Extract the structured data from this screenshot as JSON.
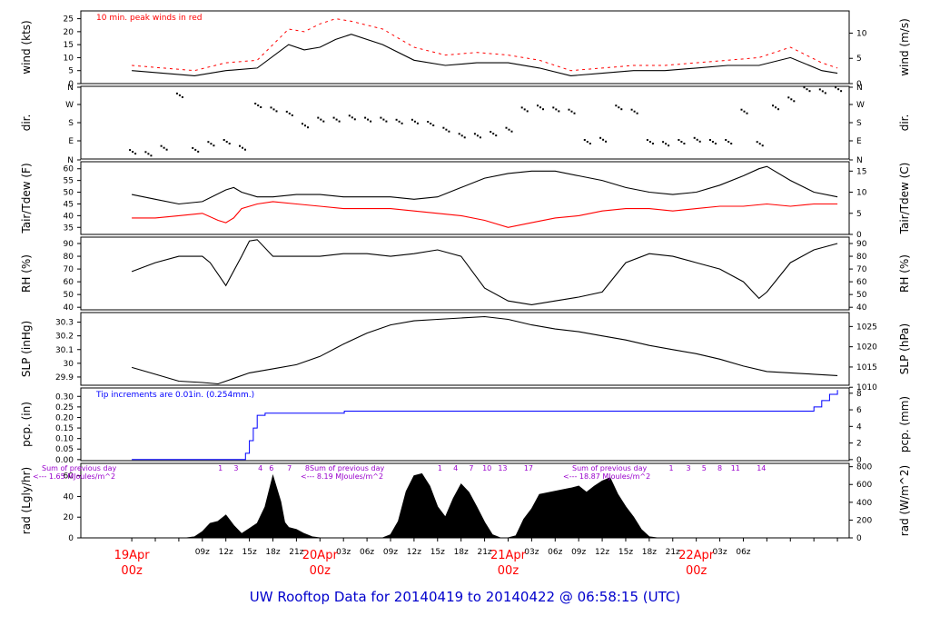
{
  "footer": {
    "title": "UW Rooftop Data for 20140419  to  20140422 @ 06:58:15  (UTC)"
  },
  "colors": {
    "frame": "#000000",
    "red": "#ff0000",
    "blue": "#0000ff",
    "purple": "#9900cc",
    "date_red": "#ff0000",
    "footer": "#0000cc"
  },
  "chart_data": [
    {
      "type": "line",
      "id": "wind",
      "ylabel_left": "wind (kts)",
      "ylabel_right": "wind (m/s)",
      "annotation": "10 min. peak winds in red",
      "yticks_left": [
        0,
        5,
        10,
        15,
        20,
        25
      ],
      "yticks_right": [
        0,
        5,
        10
      ],
      "ylim": [
        0,
        28
      ],
      "series": [
        {
          "color": "#000000",
          "x_hours": [
            0,
            4,
            8,
            12,
            16,
            20,
            22,
            24,
            26,
            28,
            32,
            36,
            40,
            44,
            48,
            52,
            56,
            60,
            64,
            68,
            72,
            76,
            80,
            84,
            88,
            90
          ],
          "values": [
            5,
            4,
            3,
            5,
            6,
            15,
            13,
            14,
            17,
            19,
            15,
            9,
            7,
            8,
            8,
            6,
            3,
            4,
            5,
            5,
            6,
            7,
            7,
            10,
            5,
            4
          ]
        },
        {
          "color": "#ff0000",
          "x_hours": [
            0,
            4,
            8,
            12,
            16,
            20,
            22,
            24,
            26,
            28,
            32,
            36,
            40,
            44,
            48,
            52,
            56,
            60,
            64,
            68,
            72,
            76,
            80,
            84,
            88,
            90
          ],
          "values": [
            7,
            6,
            5,
            8,
            9,
            21,
            20,
            23,
            25,
            24,
            21,
            14,
            11,
            12,
            11,
            9,
            5,
            6,
            7,
            7,
            8,
            9,
            10,
            14,
            8,
            6
          ]
        }
      ]
    },
    {
      "type": "scatter",
      "id": "dir",
      "ylabel_left": "dir.",
      "ylabel_right": "dir.",
      "yticks_labels": [
        "N",
        "E",
        "S",
        "W",
        "N"
      ],
      "x_hours": [
        0,
        2,
        4,
        6,
        8,
        10,
        12,
        14,
        16,
        18,
        20,
        22,
        24,
        26,
        28,
        30,
        32,
        34,
        36,
        38,
        40,
        42,
        44,
        46,
        48,
        50,
        52,
        54,
        56,
        58,
        60,
        62,
        64,
        66,
        68,
        70,
        72,
        74,
        76,
        78,
        80,
        82,
        84,
        86,
        88,
        90
      ],
      "values": [
        40,
        30,
        60,
        320,
        50,
        80,
        90,
        60,
        270,
        250,
        230,
        170,
        200,
        200,
        210,
        200,
        200,
        190,
        190,
        180,
        150,
        120,
        120,
        130,
        150,
        250,
        260,
        250,
        240,
        90,
        100,
        260,
        240,
        90,
        80,
        90,
        100,
        90,
        90,
        240,
        80,
        260,
        300,
        350,
        340,
        350
      ]
    },
    {
      "type": "line",
      "id": "temp",
      "ylabel_left": "Tair/Tdew (F)",
      "ylabel_right": "Tair/Tdew (C)",
      "yticks_left": [
        35,
        40,
        45,
        50,
        55,
        60
      ],
      "yticks_right": [
        0,
        5,
        10,
        15
      ],
      "ylim": [
        32,
        63
      ],
      "series": [
        {
          "color": "#000000",
          "x_hours": [
            0,
            3,
            6,
            9,
            12,
            13,
            14,
            16,
            18,
            21,
            24,
            27,
            30,
            33,
            36,
            39,
            42,
            45,
            48,
            51,
            54,
            57,
            60,
            63,
            66,
            69,
            72,
            75,
            78,
            80,
            81,
            84,
            87,
            90
          ],
          "values": [
            49,
            47,
            45,
            46,
            51,
            52,
            50,
            48,
            48,
            49,
            49,
            48,
            48,
            48,
            47,
            48,
            52,
            56,
            58,
            59,
            59,
            57,
            55,
            52,
            50,
            49,
            50,
            53,
            57,
            60,
            61,
            55,
            50,
            48
          ]
        },
        {
          "color": "#ff0000",
          "x_hours": [
            0,
            3,
            6,
            9,
            11,
            12,
            13,
            14,
            16,
            18,
            21,
            24,
            27,
            30,
            33,
            36,
            39,
            42,
            45,
            48,
            51,
            54,
            57,
            60,
            63,
            66,
            69,
            72,
            75,
            78,
            81,
            84,
            87,
            90
          ],
          "values": [
            39,
            39,
            40,
            41,
            38,
            37,
            39,
            43,
            45,
            46,
            45,
            44,
            43,
            43,
            43,
            42,
            41,
            40,
            38,
            35,
            37,
            39,
            40,
            42,
            43,
            43,
            42,
            43,
            44,
            44,
            45,
            44,
            45,
            45
          ]
        }
      ]
    },
    {
      "type": "line",
      "id": "rh",
      "ylabel_left": "RH (%)",
      "ylabel_right": "RH (%)",
      "yticks_left": [
        40,
        50,
        60,
        70,
        80,
        90
      ],
      "yticks_right": [
        40,
        50,
        60,
        70,
        80,
        90
      ],
      "ylim": [
        38,
        95
      ],
      "series": [
        {
          "color": "#000000",
          "x_hours": [
            0,
            3,
            6,
            9,
            10,
            12,
            14,
            15,
            16,
            18,
            21,
            24,
            27,
            30,
            33,
            36,
            39,
            42,
            45,
            48,
            51,
            54,
            57,
            60,
            63,
            66,
            69,
            72,
            75,
            78,
            80,
            81,
            84,
            87,
            90
          ],
          "values": [
            68,
            75,
            80,
            80,
            75,
            57,
            80,
            92,
            93,
            80,
            80,
            80,
            82,
            82,
            80,
            82,
            85,
            80,
            55,
            45,
            42,
            45,
            48,
            52,
            75,
            82,
            80,
            75,
            70,
            60,
            47,
            52,
            75,
            85,
            90
          ]
        }
      ]
    },
    {
      "type": "line",
      "id": "slp",
      "ylabel_left": "SLP (inHg)",
      "ylabel_right": "SLP (hPa)",
      "yticks_left": [
        29.9,
        30.0,
        30.1,
        30.2,
        30.3
      ],
      "yticks_right": [
        1010,
        1015,
        1020,
        1025
      ],
      "ylim": [
        29.84,
        30.37
      ],
      "series": [
        {
          "color": "#000000",
          "x_hours": [
            0,
            3,
            6,
            9,
            11,
            12,
            15,
            18,
            21,
            24,
            27,
            30,
            33,
            36,
            39,
            42,
            45,
            48,
            51,
            54,
            57,
            60,
            63,
            66,
            69,
            72,
            75,
            78,
            81,
            84,
            87,
            90
          ],
          "values": [
            29.97,
            29.92,
            29.87,
            29.86,
            29.85,
            29.87,
            29.93,
            29.96,
            29.99,
            30.05,
            30.14,
            30.22,
            30.28,
            30.31,
            30.32,
            30.33,
            30.34,
            30.32,
            30.28,
            30.25,
            30.23,
            30.2,
            30.17,
            30.13,
            30.1,
            30.07,
            30.03,
            29.98,
            29.94,
            29.93,
            29.92,
            29.91
          ]
        }
      ]
    },
    {
      "type": "line",
      "id": "pcp",
      "ylabel_left": "pcp. (in)",
      "ylabel_right": "pcp. (mm)",
      "annotation": "Tip increments are 0.01in. (0.254mm.)",
      "yticks_left": [
        "0.00",
        "0.05",
        "0.10",
        "0.15",
        "0.20",
        "0.25",
        "0.30"
      ],
      "yticks_right": [
        0,
        2,
        4,
        6,
        8
      ],
      "ylim": [
        -0.005,
        0.34
      ],
      "series": [
        {
          "color": "#0000ff",
          "x_hours": [
            0,
            14,
            14.5,
            15,
            15.5,
            16,
            17,
            17.5,
            27,
            27.1,
            86,
            87,
            88,
            89,
            90
          ],
          "values": [
            0,
            0,
            0.03,
            0.09,
            0.15,
            0.21,
            0.22,
            0.22,
            0.22,
            0.23,
            0.23,
            0.25,
            0.28,
            0.31,
            0.33
          ]
        }
      ]
    },
    {
      "type": "area",
      "id": "rad",
      "ylabel_left": "rad (Lgly/hr)",
      "ylabel_right": "rad (W/m^2)",
      "yticks_left": [
        0,
        20,
        40,
        60
      ],
      "yticks_right": [
        0,
        200,
        400,
        600,
        800
      ],
      "ylim": [
        0,
        72
      ],
      "annotations": [
        {
          "line1": "Sum of previous day",
          "line2": "<--- 1.65 MJoules/m^2"
        },
        {
          "line1": "Sum of previous day",
          "line2": "<--- 8.19 MJoules/m^2"
        },
        {
          "line1": "Sum of previous day",
          "line2": "<--- 18.87 MJoules/m^2"
        }
      ],
      "hour_markers": [
        "1",
        "3",
        "4",
        "6",
        "7",
        "8",
        "1",
        "4",
        "7",
        "10",
        "13",
        "17",
        "1",
        "3",
        "5",
        "8",
        "11",
        "14"
      ],
      "hour_markers_x": [
        11.3,
        13.3,
        16.4,
        17.8,
        20.1,
        22.4,
        39.3,
        41.3,
        43.3,
        45.3,
        47.3,
        50.6,
        68.8,
        71.0,
        73.0,
        75.0,
        77.0,
        80.3
      ],
      "series": [
        {
          "color": "#000000",
          "x_hours": [
            7,
            8,
            9,
            10,
            11,
            12,
            13,
            14,
            15,
            16,
            17,
            18,
            19,
            19.5,
            20,
            21,
            22,
            23,
            24,
            32,
            33,
            34,
            35,
            36,
            37,
            38,
            39,
            40,
            41,
            42,
            43,
            44,
            45,
            46,
            47,
            48,
            49,
            50,
            51,
            52,
            56,
            57,
            58,
            59,
            60,
            61,
            62,
            63,
            64,
            65,
            66,
            67,
            68,
            69,
            70,
            71,
            72,
            73,
            74,
            75,
            76,
            77,
            78,
            79,
            80,
            81,
            82
          ],
          "values": [
            0,
            1,
            6,
            14,
            16,
            22,
            12,
            4,
            9,
            14,
            30,
            60,
            35,
            15,
            10,
            8,
            4,
            1,
            0,
            0,
            3,
            16,
            45,
            60,
            62,
            50,
            30,
            20,
            38,
            52,
            44,
            30,
            15,
            3,
            0,
            0,
            2,
            18,
            28,
            42,
            48,
            50,
            44,
            50,
            55,
            58,
            42,
            30,
            20,
            8,
            1,
            0,
            0,
            0,
            0,
            0,
            0,
            0,
            0,
            0,
            0,
            0,
            0,
            0,
            0,
            0,
            0
          ]
        }
      ]
    }
  ],
  "xaxis": {
    "hour_labels": [
      "09z",
      "12z",
      "15z",
      "18z",
      "21z",
      "03z",
      "06z",
      "09z",
      "12z",
      "15z",
      "18z",
      "21z",
      "03z",
      "06z",
      "09z",
      "12z",
      "15z",
      "18z",
      "21z",
      "03z",
      "06z"
    ],
    "hour_labels_x": [
      9,
      12,
      15,
      18,
      21,
      27,
      30,
      33,
      36,
      39,
      42,
      45,
      51,
      54,
      57,
      60,
      63,
      66,
      69,
      75,
      78
    ],
    "date_labels": [
      {
        "date": "19Apr",
        "time": "00z",
        "x": 0
      },
      {
        "date": "20Apr",
        "time": "00z",
        "x": 24
      },
      {
        "date": "21Apr",
        "time": "00z",
        "x": 48
      },
      {
        "date": "22Apr",
        "time": "00z",
        "x": 72
      }
    ]
  }
}
